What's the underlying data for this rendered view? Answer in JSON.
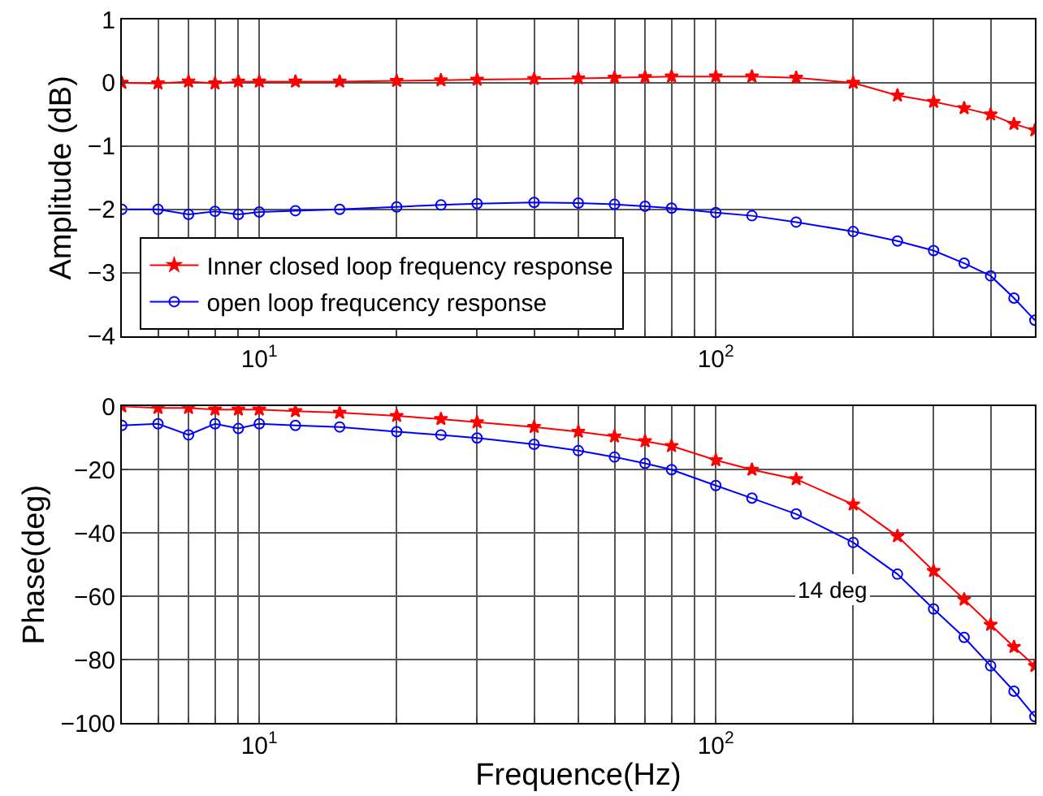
{
  "chart_data": [
    {
      "type": "line",
      "ylabel": "Amplitude (dB)",
      "x": [
        5,
        6,
        7,
        8,
        9,
        10,
        12,
        15,
        20,
        25,
        30,
        40,
        50,
        60,
        70,
        80,
        100,
        120,
        150,
        200,
        250,
        300,
        350,
        400,
        450,
        500
      ],
      "xlim": [
        5,
        500
      ],
      "xticks": [
        {
          "value": 5,
          "label": null
        },
        {
          "value": 6,
          "label": null
        },
        {
          "value": 7,
          "label": null
        },
        {
          "value": 8,
          "label": null
        },
        {
          "value": 9,
          "label": null
        },
        {
          "value": 10,
          "label": "10$^{1}$"
        },
        {
          "value": 20,
          "label": null
        },
        {
          "value": 30,
          "label": null
        },
        {
          "value": 40,
          "label": null
        },
        {
          "value": 50,
          "label": null
        },
        {
          "value": 60,
          "label": null
        },
        {
          "value": 70,
          "label": null
        },
        {
          "value": 80,
          "label": null
        },
        {
          "value": 90,
          "label": null
        },
        {
          "value": 100,
          "label": "10$^{2}$"
        },
        {
          "value": 200,
          "label": null
        },
        {
          "value": 300,
          "label": null
        },
        {
          "value": 400,
          "label": null
        },
        {
          "value": 500,
          "label": null
        }
      ],
      "log": "x",
      "ylim": [
        -4,
        1
      ],
      "yticks": [
        -4,
        -3,
        -2,
        -1,
        0,
        1
      ],
      "grid": true,
      "legend": "bottom left",
      "series": [
        {
          "name": "Inner closed loop frequency response",
          "color": "#ff0000",
          "marker": "star",
          "values": [
            0,
            -0.01,
            0.02,
            -0.01,
            0.02,
            0.02,
            0.02,
            0.02,
            0.03,
            0.04,
            0.05,
            0.06,
            0.07,
            0.08,
            0.09,
            0.1,
            0.1,
            0.1,
            0.08,
            0,
            -0.2,
            -0.3,
            -0.4,
            -0.5,
            -0.65,
            -0.75
          ]
        },
        {
          "name": "open loop frequcency response",
          "color": "#0000ff",
          "marker": "circle",
          "values": [
            -2.0,
            -2.0,
            -2.08,
            -2.03,
            -2.08,
            -2.04,
            -2.02,
            -2.0,
            -1.96,
            -1.93,
            -1.91,
            -1.89,
            -1.9,
            -1.92,
            -1.95,
            -1.98,
            -2.05,
            -2.1,
            -2.2,
            -2.35,
            -2.5,
            -2.65,
            -2.85,
            -3.05,
            -3.4,
            -3.75
          ]
        }
      ]
    },
    {
      "type": "line",
      "ylabel": "Phase(deg)",
      "xlabel": "Frequence(Hz)",
      "x": [
        5,
        6,
        7,
        8,
        9,
        10,
        12,
        15,
        20,
        25,
        30,
        40,
        50,
        60,
        70,
        80,
        100,
        120,
        150,
        200,
        250,
        300,
        350,
        400,
        450,
        500
      ],
      "xlim": [
        5,
        500
      ],
      "xticks": [
        {
          "value": 5,
          "label": null
        },
        {
          "value": 6,
          "label": null
        },
        {
          "value": 7,
          "label": null
        },
        {
          "value": 8,
          "label": null
        },
        {
          "value": 9,
          "label": null
        },
        {
          "value": 10,
          "label": "10$^{1}$"
        },
        {
          "value": 20,
          "label": null
        },
        {
          "value": 30,
          "label": null
        },
        {
          "value": 40,
          "label": null
        },
        {
          "value": 50,
          "label": null
        },
        {
          "value": 60,
          "label": null
        },
        {
          "value": 70,
          "label": null
        },
        {
          "value": 80,
          "label": null
        },
        {
          "value": 90,
          "label": null
        },
        {
          "value": 100,
          "label": "10$^{2}$"
        },
        {
          "value": 200,
          "label": null
        },
        {
          "value": 300,
          "label": null
        },
        {
          "value": 400,
          "label": null
        },
        {
          "value": 500,
          "label": null
        }
      ],
      "log": "x",
      "ylim": [
        -100,
        0
      ],
      "yticks": [
        -100,
        -80,
        -60,
        -40,
        -20,
        0
      ],
      "grid": true,
      "annotations": [
        "14 deg"
      ],
      "series": [
        {
          "color": "#ff0000",
          "marker": "star",
          "values": [
            0,
            -0.5,
            -0.5,
            -1,
            -1,
            -1,
            -1.5,
            -2,
            -3,
            -4,
            -5,
            -6.5,
            -8,
            -9.5,
            -11,
            -12.5,
            -17,
            -20,
            -23,
            -31,
            -41,
            -52,
            -61,
            -69,
            -76,
            -82
          ]
        },
        {
          "color": "#0000ff",
          "marker": "circle",
          "values": [
            -6,
            -5.5,
            -9,
            -5.5,
            -7,
            -5.5,
            -6,
            -6.5,
            -8,
            -9,
            -10,
            -12,
            -14,
            -16,
            -18,
            -20,
            -25,
            -29,
            -34,
            -43,
            -53,
            -64,
            -73,
            -82,
            -90,
            -98
          ]
        }
      ]
    }
  ]
}
